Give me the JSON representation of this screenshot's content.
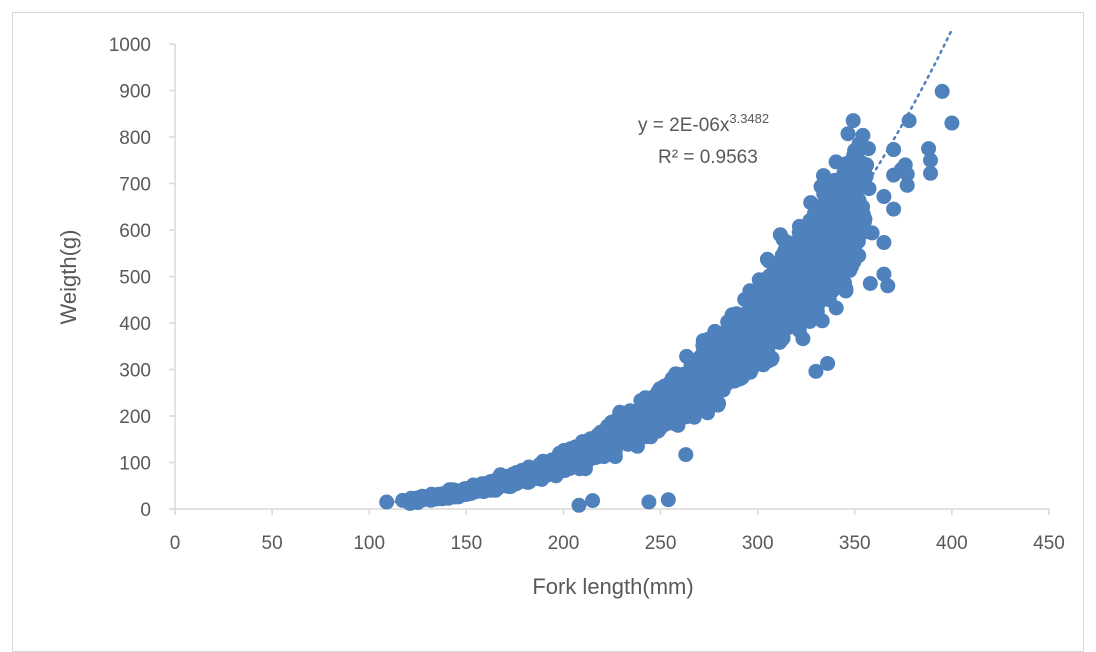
{
  "chart_data": {
    "type": "scatter",
    "title": "",
    "xlabel": "Fork length(mm)",
    "ylabel": "Weigth(g)",
    "xlim": [
      0,
      450
    ],
    "ylim": [
      0,
      1000
    ],
    "xticks": [
      "0",
      "50",
      "100",
      "150",
      "200",
      "250",
      "300",
      "350",
      "400",
      "450"
    ],
    "yticks": [
      "0",
      "100",
      "200",
      "300",
      "400",
      "500",
      "600",
      "700",
      "800",
      "900",
      "1000"
    ],
    "grid": false,
    "legend": "none",
    "marker_color": "#4f81bd",
    "trendline": {
      "type": "power",
      "a": 2e-06,
      "b": 3.3482,
      "style": "dotted",
      "x_range": [
        110,
        400
      ],
      "equation_label": "y = 2E-06x",
      "equation_exponent": "3.3482",
      "r2_label": "R² = 0.9563"
    },
    "outliers": [
      {
        "x": 109,
        "y": 15
      },
      {
        "x": 121,
        "y": 12
      },
      {
        "x": 125,
        "y": 14
      },
      {
        "x": 208,
        "y": 8
      },
      {
        "x": 215,
        "y": 18
      },
      {
        "x": 244,
        "y": 15
      },
      {
        "x": 254,
        "y": 20
      },
      {
        "x": 229,
        "y": 208
      },
      {
        "x": 263,
        "y": 117
      },
      {
        "x": 305,
        "y": 537
      },
      {
        "x": 330,
        "y": 575
      },
      {
        "x": 340,
        "y": 578
      },
      {
        "x": 350,
        "y": 630
      },
      {
        "x": 354,
        "y": 650
      },
      {
        "x": 355,
        "y": 618
      },
      {
        "x": 352,
        "y": 545
      },
      {
        "x": 358,
        "y": 485
      },
      {
        "x": 365,
        "y": 505
      },
      {
        "x": 367,
        "y": 480
      },
      {
        "x": 365,
        "y": 573
      },
      {
        "x": 365,
        "y": 672
      },
      {
        "x": 370,
        "y": 645
      },
      {
        "x": 370,
        "y": 718
      },
      {
        "x": 370,
        "y": 773
      },
      {
        "x": 374,
        "y": 730
      },
      {
        "x": 376,
        "y": 740
      },
      {
        "x": 377,
        "y": 720
      },
      {
        "x": 377,
        "y": 696
      },
      {
        "x": 378,
        "y": 835
      },
      {
        "x": 388,
        "y": 775
      },
      {
        "x": 389,
        "y": 750
      },
      {
        "x": 389,
        "y": 722
      },
      {
        "x": 395,
        "y": 898
      },
      {
        "x": 400,
        "y": 830
      },
      {
        "x": 336,
        "y": 313
      },
      {
        "x": 330,
        "y": 296
      },
      {
        "x": 296,
        "y": 432
      },
      {
        "x": 303,
        "y": 472
      },
      {
        "x": 323,
        "y": 502
      },
      {
        "x": 280,
        "y": 338
      },
      {
        "x": 198,
        "y": 120
      },
      {
        "x": 178,
        "y": 75
      }
    ],
    "cloud": {
      "x_range": [
        125,
        352
      ],
      "count": 2600,
      "relative_spread": 0.11
    }
  }
}
